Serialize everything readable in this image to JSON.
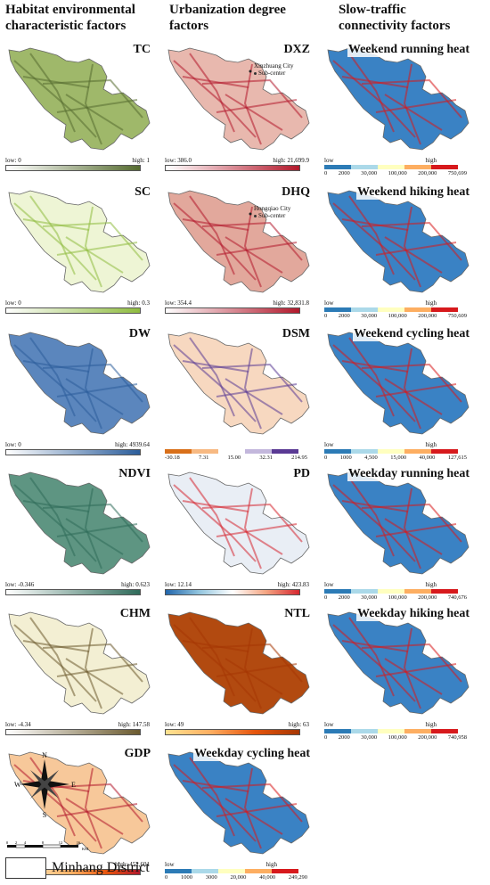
{
  "columns": [
    {
      "title_line1": "Habitat environmental",
      "title_line2": "characteristic factors"
    },
    {
      "title_line1": "Urbanization degree",
      "title_line2": "factors"
    },
    {
      "title_line1": "Slow-traffic",
      "title_line2": "connectivity factors"
    }
  ],
  "panels": [
    {
      "id": "tc",
      "title": "TC",
      "low": "low: 0",
      "high": "high: 1",
      "colors": [
        "#ffffff",
        "#556b2f"
      ],
      "fill": "#9fb86a"
    },
    {
      "id": "dxz",
      "title": "DXZ",
      "low": "low: 386.0",
      "high": "high: 21,699.9",
      "colors": [
        "#ffffff",
        "#b2182b"
      ],
      "fill": "#e8b8ae",
      "annotation1": "Xinzhuang City",
      "annotation2": "Sub-center"
    },
    {
      "id": "wrh",
      "title": "Weekend running heat",
      "low": "low",
      "high": "high",
      "ticks": [
        "0",
        "2000",
        "30,000",
        "100,000",
        "200,000",
        "750,699"
      ],
      "colors": [
        "#2c7bb6",
        "#abd9e9",
        "#ffffbf",
        "#fdae61",
        "#d7191c"
      ],
      "fill": "#3a82c4"
    },
    {
      "id": "sc",
      "title": "SC",
      "low": "low: 0",
      "high": "high: 0.3",
      "colors": [
        "#ffffff",
        "#8fbc3f"
      ],
      "fill": "#eef5d5"
    },
    {
      "id": "dhq",
      "title": "DHQ",
      "low": "low: 354.4",
      "high": "high: 32,831.8",
      "colors": [
        "#ffffff",
        "#b2182b"
      ],
      "fill": "#e2a89c",
      "annotation1": "Hongqiao City",
      "annotation2": "Sub-center"
    },
    {
      "id": "whh",
      "title": "Weekend hiking heat",
      "low": "low",
      "high": "high",
      "ticks": [
        "0",
        "2000",
        "30,000",
        "100,000",
        "200,000",
        "750,609"
      ],
      "colors": [
        "#2c7bb6",
        "#abd9e9",
        "#ffffbf",
        "#fdae61",
        "#d7191c"
      ],
      "fill": "#3a82c4"
    },
    {
      "id": "dw",
      "title": "DW",
      "low": "low: 0",
      "high": "high: 4939.64",
      "colors": [
        "#ffffff",
        "#2b5d9b"
      ],
      "fill": "#5b86bd"
    },
    {
      "id": "dsm",
      "title": "DSM",
      "low": "",
      "high": "",
      "ticks": [
        "-30.18",
        "7.31",
        "15.00",
        "32.31",
        "214.95"
      ],
      "colors": [
        "#d9701a",
        "#f7b982",
        "#ffffff",
        "#c3b7dc",
        "#5a3a94"
      ],
      "fill": "#f7d8c0"
    },
    {
      "id": "wch",
      "title": "Weekend cycling heat",
      "low": "low",
      "high": "high",
      "ticks": [
        "0",
        "1000",
        "4,500",
        "15,000",
        "40,000",
        "127,615"
      ],
      "colors": [
        "#2c7bb6",
        "#abd9e9",
        "#ffffbf",
        "#fdae61",
        "#d7191c"
      ],
      "fill": "#3a82c4"
    },
    {
      "id": "ndvi",
      "title": "NDVI",
      "low": "low: -0.346",
      "high": "high: 0.623",
      "colors": [
        "#ffffff",
        "#2f6b5a"
      ],
      "fill": "#5e9582"
    },
    {
      "id": "pd",
      "title": "PD",
      "low": "low: 12.14",
      "high": "high: 423.83",
      "colors": [
        "#2166ac",
        "#92c5de",
        "#ffffff",
        "#f4a582",
        "#d6262f"
      ],
      "fill": "#e9eef5"
    },
    {
      "id": "wdrh",
      "title": "Weekday running heat",
      "low": "low",
      "high": "high",
      "ticks": [
        "0",
        "2000",
        "30,000",
        "100,000",
        "200,000",
        "740,676"
      ],
      "colors": [
        "#2c7bb6",
        "#abd9e9",
        "#ffffbf",
        "#fdae61",
        "#d7191c"
      ],
      "fill": "#3a82c4"
    },
    {
      "id": "chm",
      "title": "CHM",
      "low": "low: -4.34",
      "high": "high: 147.58",
      "colors": [
        "#ffffff",
        "#6b5a2e"
      ],
      "fill": "#f3efd3"
    },
    {
      "id": "ntl",
      "title": "NTL",
      "low": "low: 49",
      "high": "high: 63",
      "colors": [
        "#fee391",
        "#fdae61",
        "#e6550d",
        "#a63603"
      ],
      "fill": "#b24a10"
    },
    {
      "id": "wdhh",
      "title": "Weekday hiking heat",
      "low": "low",
      "high": "high",
      "ticks": [
        "0",
        "2000",
        "30,000",
        "100,000",
        "200,000",
        "740,958"
      ],
      "colors": [
        "#2c7bb6",
        "#abd9e9",
        "#ffffbf",
        "#fdae61",
        "#d7191c"
      ],
      "fill": "#3a82c4"
    },
    {
      "id": "gdp",
      "title": "GDP",
      "low": "low: 12,683",
      "high": "high: 452,601",
      "colors": [
        "#3b63b8",
        "#fdd7a0",
        "#fdae61",
        "#e6550d",
        "#b2182b"
      ],
      "fill": "#f7c89a"
    },
    {
      "id": "wdch",
      "title": "Weekday cycling heat",
      "low": "low",
      "high": "high",
      "ticks": [
        "0",
        "1000",
        "3000",
        "20,000",
        "40,000",
        "249,290"
      ],
      "colors": [
        "#2c7bb6",
        "#abd9e9",
        "#ffffbf",
        "#fdae61",
        "#d7191c"
      ],
      "fill": "#3a82c4"
    }
  ],
  "compass": {
    "n": "N",
    "s": "S",
    "e": "E",
    "w": "W"
  },
  "scalebar": {
    "labels": [
      "0",
      "2",
      "4",
      "8",
      "12",
      "16"
    ],
    "unit": "KM"
  },
  "district_legend": {
    "label": "Minhang District"
  }
}
